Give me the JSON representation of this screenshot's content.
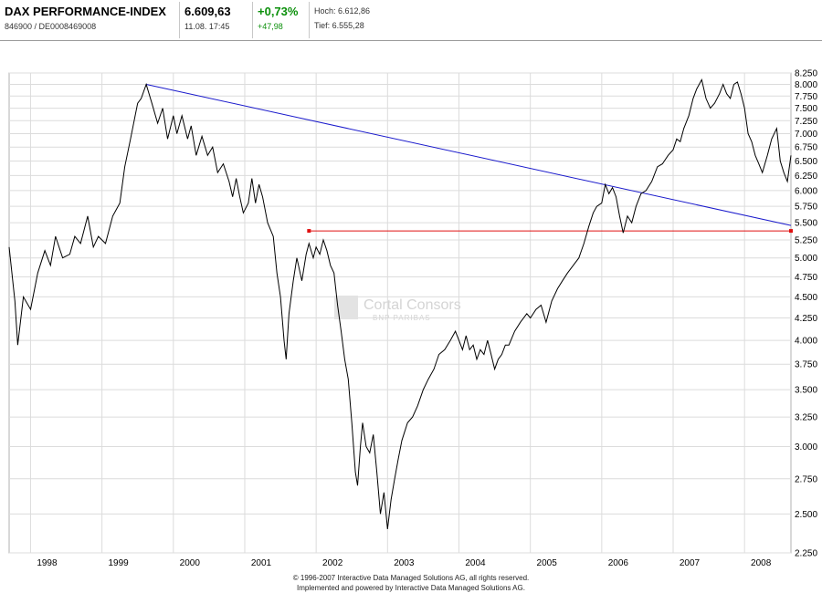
{
  "header": {
    "title": "DAX PERFORMANCE-INDEX",
    "wkn_isin": "846900  /  DE0008469008",
    "price": "6.609,63",
    "datetime": "11.08. 17:45",
    "change_pct": "+0,73%",
    "change_abs": "+47,98",
    "high": "Hoch: 6.612,86",
    "low": "Tief: 6.555,28"
  },
  "watermark": {
    "line1": "Cortal Consors",
    "line2": "BNP PARIBAS"
  },
  "footer": {
    "line1": "© 1996-2007 Interactive Data Managed Solutions AG, all rights reserved.",
    "line2": "Implemented and powered by Interactive Data Managed Solutions AG."
  },
  "colors": {
    "price_line": "#000000",
    "trend_line": "#1a1acc",
    "support_line": "#e01010",
    "grid": "#dcdcdc",
    "positive": "#0a8f0a"
  },
  "chart_data": {
    "type": "line",
    "title": "DAX PERFORMANCE-INDEX",
    "xlabel": "",
    "ylabel": "",
    "xlim": [
      1997.7,
      2008.65
    ],
    "ylim": [
      2250,
      8250
    ],
    "y_scale": "log",
    "x_ticks": [
      {
        "label": "1998",
        "pos": 1998.0
      },
      {
        "label": "1999",
        "pos": 1999.0
      },
      {
        "label": "2000",
        "pos": 2000.0
      },
      {
        "label": "2001",
        "pos": 2001.0
      },
      {
        "label": "2002",
        "pos": 2002.0
      },
      {
        "label": "2003",
        "pos": 2003.0
      },
      {
        "label": "2004",
        "pos": 2004.0
      },
      {
        "label": "2005",
        "pos": 2005.0
      },
      {
        "label": "2006",
        "pos": 2006.0
      },
      {
        "label": "2007",
        "pos": 2007.0
      },
      {
        "label": "2008",
        "pos": 2008.0
      }
    ],
    "y_ticks": [
      {
        "label": "8.250",
        "value": 8250
      },
      {
        "label": "8.000",
        "value": 8000
      },
      {
        "label": "7.750",
        "value": 7750
      },
      {
        "label": "7.500",
        "value": 7500
      },
      {
        "label": "7.250",
        "value": 7250
      },
      {
        "label": "7.000",
        "value": 7000
      },
      {
        "label": "6.750",
        "value": 6750
      },
      {
        "label": "6.500",
        "value": 6500
      },
      {
        "label": "6.250",
        "value": 6250
      },
      {
        "label": "6.000",
        "value": 6000
      },
      {
        "label": "5.750",
        "value": 5750
      },
      {
        "label": "5.500",
        "value": 5500
      },
      {
        "label": "5.250",
        "value": 5250
      },
      {
        "label": "5.000",
        "value": 5000
      },
      {
        "label": "4.750",
        "value": 4750
      },
      {
        "label": "4.500",
        "value": 4500
      },
      {
        "label": "4.250",
        "value": 4250
      },
      {
        "label": "4.000",
        "value": 4000
      },
      {
        "label": "3.750",
        "value": 3750
      },
      {
        "label": "3.500",
        "value": 3500
      },
      {
        "label": "3.250",
        "value": 3250
      },
      {
        "label": "3.000",
        "value": 3000
      },
      {
        "label": "2.750",
        "value": 2750
      },
      {
        "label": "2.500",
        "value": 2500
      },
      {
        "label": "2.250",
        "value": 2250
      }
    ],
    "series": [
      {
        "name": "DAX",
        "points": [
          [
            1997.7,
            5150
          ],
          [
            1997.78,
            4450
          ],
          [
            1997.82,
            3950
          ],
          [
            1997.9,
            4500
          ],
          [
            1998.0,
            4350
          ],
          [
            1998.1,
            4800
          ],
          [
            1998.2,
            5100
          ],
          [
            1998.28,
            4900
          ],
          [
            1998.35,
            5300
          ],
          [
            1998.45,
            5000
          ],
          [
            1998.55,
            5050
          ],
          [
            1998.62,
            5300
          ],
          [
            1998.7,
            5200
          ],
          [
            1998.8,
            5600
          ],
          [
            1998.88,
            5150
          ],
          [
            1998.95,
            5300
          ],
          [
            1999.05,
            5200
          ],
          [
            1999.15,
            5600
          ],
          [
            1999.25,
            5800
          ],
          [
            1999.32,
            6400
          ],
          [
            1999.4,
            6900
          ],
          [
            1999.5,
            7600
          ],
          [
            1999.55,
            7700
          ],
          [
            1999.62,
            8000
          ],
          [
            1999.7,
            7600
          ],
          [
            1999.78,
            7200
          ],
          [
            1999.85,
            7500
          ],
          [
            1999.92,
            6900
          ],
          [
            2000.0,
            7350
          ],
          [
            2000.05,
            7000
          ],
          [
            2000.12,
            7350
          ],
          [
            2000.2,
            6900
          ],
          [
            2000.25,
            7150
          ],
          [
            2000.32,
            6600
          ],
          [
            2000.4,
            6950
          ],
          [
            2000.48,
            6600
          ],
          [
            2000.55,
            6750
          ],
          [
            2000.62,
            6300
          ],
          [
            2000.7,
            6450
          ],
          [
            2000.78,
            6150
          ],
          [
            2000.83,
            5900
          ],
          [
            2000.88,
            6200
          ],
          [
            2000.93,
            5900
          ],
          [
            2000.98,
            5650
          ],
          [
            2001.05,
            5800
          ],
          [
            2001.1,
            6200
          ],
          [
            2001.15,
            5800
          ],
          [
            2001.2,
            6100
          ],
          [
            2001.25,
            5900
          ],
          [
            2001.32,
            5500
          ],
          [
            2001.4,
            5300
          ],
          [
            2001.45,
            4800
          ],
          [
            2001.5,
            4500
          ],
          [
            2001.55,
            4000
          ],
          [
            2001.58,
            3800
          ],
          [
            2001.62,
            4300
          ],
          [
            2001.68,
            4700
          ],
          [
            2001.73,
            5000
          ],
          [
            2001.8,
            4700
          ],
          [
            2001.86,
            5050
          ],
          [
            2001.9,
            5200
          ],
          [
            2001.96,
            5000
          ],
          [
            2002.0,
            5150
          ],
          [
            2002.05,
            5050
          ],
          [
            2002.1,
            5250
          ],
          [
            2002.15,
            5100
          ],
          [
            2002.2,
            4900
          ],
          [
            2002.25,
            4800
          ],
          [
            2002.3,
            4400
          ],
          [
            2002.35,
            4100
          ],
          [
            2002.4,
            3800
          ],
          [
            2002.45,
            3600
          ],
          [
            2002.5,
            3200
          ],
          [
            2002.55,
            2800
          ],
          [
            2002.58,
            2700
          ],
          [
            2002.62,
            3000
          ],
          [
            2002.65,
            3200
          ],
          [
            2002.7,
            3000
          ],
          [
            2002.75,
            2950
          ],
          [
            2002.8,
            3100
          ],
          [
            2002.85,
            2800
          ],
          [
            2002.9,
            2500
          ],
          [
            2002.95,
            2650
          ],
          [
            2003.0,
            2400
          ],
          [
            2003.05,
            2600
          ],
          [
            2003.1,
            2750
          ],
          [
            2003.15,
            2900
          ],
          [
            2003.2,
            3050
          ],
          [
            2003.28,
            3200
          ],
          [
            2003.35,
            3250
          ],
          [
            2003.42,
            3350
          ],
          [
            2003.5,
            3500
          ],
          [
            2003.57,
            3600
          ],
          [
            2003.65,
            3700
          ],
          [
            2003.72,
            3850
          ],
          [
            2003.8,
            3900
          ],
          [
            2003.88,
            4000
          ],
          [
            2003.95,
            4100
          ],
          [
            2004.0,
            4000
          ],
          [
            2004.05,
            3900
          ],
          [
            2004.1,
            4050
          ],
          [
            2004.15,
            3900
          ],
          [
            2004.2,
            3950
          ],
          [
            2004.25,
            3800
          ],
          [
            2004.3,
            3900
          ],
          [
            2004.35,
            3850
          ],
          [
            2004.4,
            4000
          ],
          [
            2004.45,
            3850
          ],
          [
            2004.5,
            3700
          ],
          [
            2004.55,
            3800
          ],
          [
            2004.6,
            3850
          ],
          [
            2004.65,
            3950
          ],
          [
            2004.7,
            3950
          ],
          [
            2004.78,
            4100
          ],
          [
            2004.86,
            4200
          ],
          [
            2004.95,
            4300
          ],
          [
            2005.0,
            4250
          ],
          [
            2005.08,
            4350
          ],
          [
            2005.15,
            4400
          ],
          [
            2005.22,
            4200
          ],
          [
            2005.3,
            4450
          ],
          [
            2005.38,
            4600
          ],
          [
            2005.45,
            4700
          ],
          [
            2005.52,
            4800
          ],
          [
            2005.6,
            4900
          ],
          [
            2005.68,
            5000
          ],
          [
            2005.75,
            5200
          ],
          [
            2005.82,
            5450
          ],
          [
            2005.88,
            5650
          ],
          [
            2005.93,
            5750
          ],
          [
            2006.0,
            5800
          ],
          [
            2006.05,
            6100
          ],
          [
            2006.1,
            5950
          ],
          [
            2006.15,
            6050
          ],
          [
            2006.2,
            5900
          ],
          [
            2006.25,
            5600
          ],
          [
            2006.3,
            5350
          ],
          [
            2006.36,
            5600
          ],
          [
            2006.42,
            5500
          ],
          [
            2006.48,
            5750
          ],
          [
            2006.55,
            5950
          ],
          [
            2006.62,
            6000
          ],
          [
            2006.7,
            6150
          ],
          [
            2006.78,
            6400
          ],
          [
            2006.85,
            6450
          ],
          [
            2006.93,
            6600
          ],
          [
            2007.0,
            6700
          ],
          [
            2007.05,
            6900
          ],
          [
            2007.1,
            6850
          ],
          [
            2007.15,
            7100
          ],
          [
            2007.22,
            7350
          ],
          [
            2007.28,
            7700
          ],
          [
            2007.33,
            7900
          ],
          [
            2007.4,
            8100
          ],
          [
            2007.46,
            7700
          ],
          [
            2007.52,
            7500
          ],
          [
            2007.58,
            7600
          ],
          [
            2007.65,
            7800
          ],
          [
            2007.7,
            8000
          ],
          [
            2007.75,
            7800
          ],
          [
            2007.8,
            7700
          ],
          [
            2007.85,
            8000
          ],
          [
            2007.9,
            8050
          ],
          [
            2007.95,
            7800
          ],
          [
            2008.0,
            7500
          ],
          [
            2008.05,
            7000
          ],
          [
            2008.1,
            6850
          ],
          [
            2008.15,
            6600
          ],
          [
            2008.2,
            6450
          ],
          [
            2008.25,
            6300
          ],
          [
            2008.32,
            6600
          ],
          [
            2008.38,
            6900
          ],
          [
            2008.45,
            7100
          ],
          [
            2008.5,
            6500
          ],
          [
            2008.55,
            6300
          ],
          [
            2008.6,
            6150
          ],
          [
            2008.65,
            6600
          ]
        ]
      }
    ],
    "annotations": [
      {
        "type": "trendline",
        "name": "resistance",
        "from": [
          1999.62,
          8000
        ],
        "to": [
          2008.65,
          5460
        ]
      },
      {
        "type": "horizontal",
        "name": "support",
        "from": [
          2001.9,
          5380
        ],
        "to": [
          2008.65,
          5380
        ]
      }
    ]
  }
}
